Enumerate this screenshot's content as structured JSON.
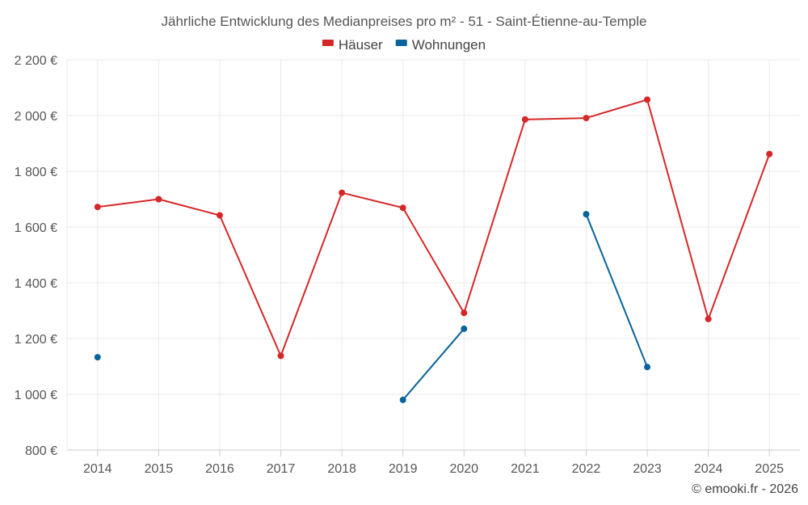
{
  "chart_data": {
    "type": "line",
    "title": "Jährliche Entwicklung des Medianpreises pro m² - 51 - Saint-Étienne-au-Temple",
    "xlabel": "",
    "ylabel": "",
    "categories": [
      "2014",
      "2015",
      "2016",
      "2017",
      "2018",
      "2019",
      "2020",
      "2021",
      "2022",
      "2023",
      "2024",
      "2025"
    ],
    "ylim": [
      800,
      2200
    ],
    "yticks": [
      800,
      1000,
      1200,
      1400,
      1600,
      1800,
      2000,
      2200
    ],
    "ytick_labels": [
      "800 €",
      "1 000 €",
      "1 200 €",
      "1 400 €",
      "1 600 €",
      "1 800 €",
      "2 000 €",
      "2 200 €"
    ],
    "grid": true,
    "legend_position": "top-center",
    "series": [
      {
        "name": "Häuser",
        "color": "#d62728",
        "values": [
          1672,
          1700,
          1642,
          1138,
          1723,
          1669,
          1292,
          1986,
          1991,
          2057,
          1270,
          1862
        ]
      },
      {
        "name": "Wohnungen",
        "color": "#08639b",
        "values": [
          1133,
          null,
          null,
          null,
          null,
          980,
          1235,
          null,
          1646,
          1098,
          null,
          null
        ]
      }
    ]
  },
  "credit": "© emooki.fr - 2026"
}
